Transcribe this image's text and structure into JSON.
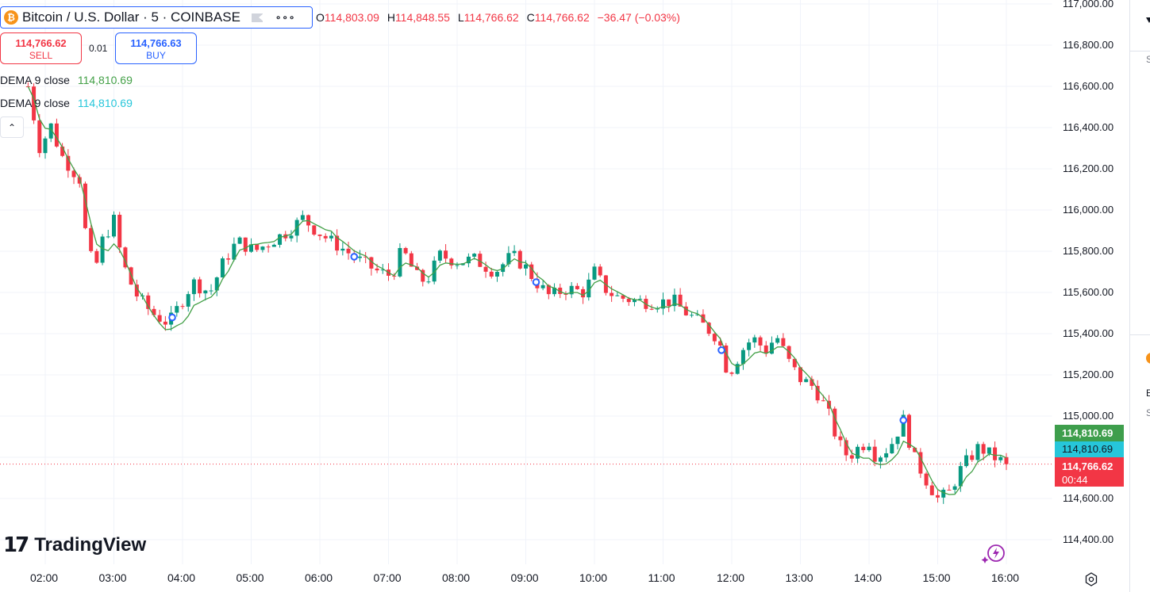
{
  "symbol": {
    "title": "Bitcoin / U.S. Dollar · 5 · COINBASE",
    "icon": "bitcoin-icon",
    "more_label": "∘∘∘"
  },
  "ohlc": {
    "o_label": "O",
    "o_value": "114,803.09",
    "h_label": "H",
    "h_value": "114,848.55",
    "l_label": "L",
    "l_value": "114,766.62",
    "c_label": "C",
    "c_value": "114,766.62",
    "change": "−36.47 (−0.03%)"
  },
  "trade": {
    "sell_price": "114,766.62",
    "sell_label": "SELL",
    "spread": "0.01",
    "buy_price": "114,766.63",
    "buy_label": "BUY"
  },
  "indicators": [
    {
      "name": "DEMA",
      "params": "9 close",
      "value": "114,810.69",
      "color": "#43a047"
    },
    {
      "name": "DEMA",
      "params": "9 close",
      "value": "114,810.69",
      "color": "#26c6da"
    }
  ],
  "logo": {
    "mark": "17",
    "text": "TradingView"
  },
  "price_badges": {
    "dema1": "114,810.69",
    "dema2": "114,810.69",
    "last": "114,766.62",
    "countdown": "00:44"
  },
  "side_panel": {
    "label1": "S",
    "label2": "E",
    "label3": "S"
  },
  "colors": {
    "up": "#089981",
    "down": "#f23645",
    "dema": "#43a047",
    "grid": "#f0f3fa",
    "accent": "#2962ff"
  },
  "chart_data": {
    "type": "candlestick",
    "title": "Bitcoin / U.S. Dollar · 5 · COINBASE",
    "xlabel": "",
    "ylabel": "",
    "ylim": [
      114250,
      117000
    ],
    "y_ticks": [
      "117,000.00",
      "116,800.00",
      "116,600.00",
      "116,400.00",
      "116,200.00",
      "116,000.00",
      "115,800.00",
      "115,600.00",
      "115,400.00",
      "115,200.00",
      "115,000.00",
      "114,800.00",
      "114,600.00",
      "114,400.00"
    ],
    "y_tick_values": [
      117000,
      116800,
      116600,
      116400,
      116200,
      116000,
      115800,
      115600,
      115400,
      115200,
      115000,
      114800,
      114600,
      114400
    ],
    "x_ticks": [
      "02:00",
      "03:00",
      "04:00",
      "05:00",
      "06:00",
      "07:00",
      "08:00",
      "09:00",
      "10:00",
      "11:00",
      "12:00",
      "13:00",
      "14:00",
      "15:00",
      "16:00"
    ],
    "x_tick_hours": [
      2,
      3,
      4,
      5,
      6,
      7,
      8,
      9,
      10,
      11,
      12,
      13,
      14,
      15,
      16
    ],
    "interval_minutes": 5,
    "first_bar_hour": 1.75,
    "last_price": 114766.62,
    "grid": true,
    "path": [
      [
        1.75,
        116600
      ],
      [
        1.92,
        116300
      ],
      [
        2.1,
        116420
      ],
      [
        2.2,
        116280
      ],
      [
        2.5,
        116150
      ],
      [
        2.6,
        115850
      ],
      [
        2.72,
        115700
      ],
      [
        2.83,
        115850
      ],
      [
        3.0,
        115950
      ],
      [
        3.12,
        115750
      ],
      [
        3.3,
        115600
      ],
      [
        3.55,
        115500
      ],
      [
        3.8,
        115450
      ],
      [
        4.15,
        115650
      ],
      [
        4.4,
        115600
      ],
      [
        4.6,
        115750
      ],
      [
        4.8,
        115850
      ],
      [
        5.05,
        115800
      ],
      [
        5.3,
        115850
      ],
      [
        5.55,
        115900
      ],
      [
        5.75,
        115960
      ],
      [
        5.95,
        115900
      ],
      [
        6.15,
        115850
      ],
      [
        6.3,
        115820
      ],
      [
        6.6,
        115750
      ],
      [
        6.85,
        115700
      ],
      [
        7.05,
        115680
      ],
      [
        7.2,
        115810
      ],
      [
        7.4,
        115680
      ],
      [
        7.55,
        115650
      ],
      [
        7.75,
        115780
      ],
      [
        8.0,
        115750
      ],
      [
        8.25,
        115760
      ],
      [
        8.55,
        115700
      ],
      [
        8.8,
        115780
      ],
      [
        9.0,
        115720
      ],
      [
        9.15,
        115650
      ],
      [
        9.35,
        115580
      ],
      [
        9.6,
        115620
      ],
      [
        9.85,
        115600
      ],
      [
        10.0,
        115700
      ],
      [
        10.15,
        115620
      ],
      [
        10.3,
        115580
      ],
      [
        10.6,
        115560
      ],
      [
        10.9,
        115550
      ],
      [
        11.15,
        115560
      ],
      [
        11.3,
        115510
      ],
      [
        11.55,
        115450
      ],
      [
        11.8,
        115380
      ],
      [
        11.95,
        115200
      ],
      [
        12.15,
        115320
      ],
      [
        12.3,
        115380
      ],
      [
        12.5,
        115320
      ],
      [
        12.65,
        115390
      ],
      [
        12.85,
        115250
      ],
      [
        13.0,
        115180
      ],
      [
        13.2,
        115140
      ],
      [
        13.4,
        115020
      ],
      [
        13.55,
        114870
      ],
      [
        13.7,
        114800
      ],
      [
        13.85,
        114850
      ],
      [
        14.0,
        114880
      ],
      [
        14.1,
        114800
      ],
      [
        14.3,
        114850
      ],
      [
        14.5,
        114980
      ],
      [
        14.65,
        114800
      ],
      [
        14.85,
        114680
      ],
      [
        15.0,
        114600
      ],
      [
        15.15,
        114620
      ],
      [
        15.35,
        114750
      ],
      [
        15.6,
        114850
      ],
      [
        15.8,
        114805
      ],
      [
        16.0,
        114766.62
      ]
    ]
  }
}
